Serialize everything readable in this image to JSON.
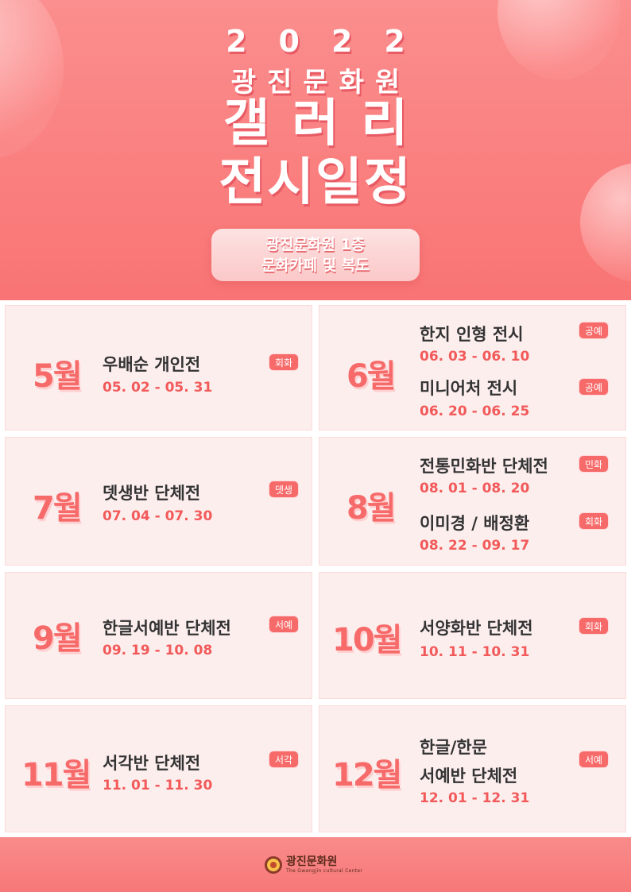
{
  "header": {
    "year": "2022",
    "org": "광진문화원",
    "title_line1": "갤러리",
    "title_line2": "전시일정",
    "venue_line1": "광진문화원 1층",
    "venue_line2": "문화카페 및 복도"
  },
  "schedule": [
    {
      "month": "5월",
      "events": [
        {
          "title": "우배순 개인전",
          "date": "05. 02 - 05. 31",
          "tag": "회화"
        }
      ]
    },
    {
      "month": "6월",
      "events": [
        {
          "title": "한지 인형 전시",
          "date": "06. 03 - 06. 10",
          "tag": "공예"
        },
        {
          "title": "미니어처 전시",
          "date": "06. 20 - 06. 25",
          "tag": "공예"
        }
      ]
    },
    {
      "month": "7월",
      "events": [
        {
          "title": "뎃생반 단체전",
          "date": "07. 04 - 07. 30",
          "tag": "뎃생"
        }
      ]
    },
    {
      "month": "8월",
      "events": [
        {
          "title": "전통민화반 단체전",
          "date": "08. 01 - 08. 20",
          "tag": "민화"
        },
        {
          "title": "이미경  /  배정환",
          "date": "08. 22 - 09. 17",
          "tag": "회화"
        }
      ]
    },
    {
      "month": "9월",
      "events": [
        {
          "title": "한글서예반 단체전",
          "date": "09. 19 - 10. 08",
          "tag": "서예"
        }
      ]
    },
    {
      "month": "10월",
      "events": [
        {
          "title": "서양화반 단체전",
          "date": "10. 11 - 10. 31",
          "tag": "회화"
        }
      ]
    },
    {
      "month": "11월",
      "events": [
        {
          "title": "서각반 단체전",
          "date": "11. 01 - 11. 30",
          "tag": "서각"
        }
      ]
    },
    {
      "month": "12월",
      "events": [
        {
          "title_line1": "한글/한문",
          "title_line2": "서예반 단체전",
          "date": "12. 01 - 12. 31",
          "tag": "서예"
        }
      ]
    }
  ],
  "footer": {
    "logo_name": "광진문화원",
    "logo_sub": "The Gwangjin cultural Center"
  },
  "colors": {
    "accent": "#f76a6a",
    "date": "#f25a5a",
    "card_bg": "#fdeeee",
    "title_text": "#333333"
  }
}
